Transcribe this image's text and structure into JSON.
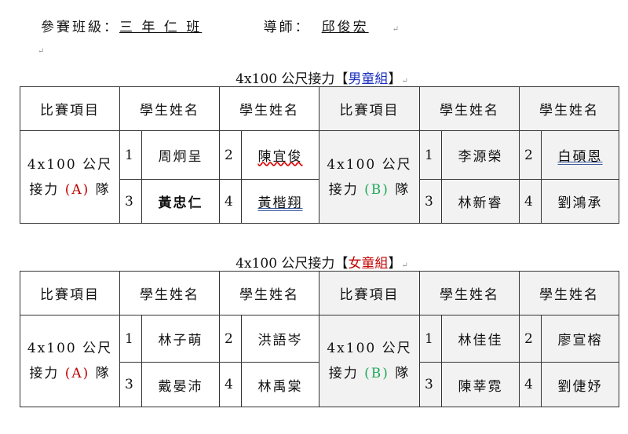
{
  "header": {
    "class_label": "參賽班級：",
    "class_value": "三 年 仁 班",
    "teacher_label": "導師：",
    "teacher_value": "邱俊宏"
  },
  "tables": [
    {
      "title_prefix": "4x100 公尺接力【",
      "group": "男童組",
      "title_suffix": "】",
      "group_color": "#1a2fbf",
      "headers": [
        "比賽項目",
        "學生姓名",
        "學生姓名",
        "比賽項目",
        "學生姓名",
        "學生姓名"
      ],
      "team_a": {
        "line1": "4x100 公尺",
        "line2_pre": "接力",
        "tag": "(A)",
        "line2_post": "隊",
        "students": [
          [
            "1",
            "周炯呈"
          ],
          [
            "2",
            "陳宜俊"
          ],
          [
            "3",
            "黃忠仁"
          ],
          [
            "4",
            "黃楷翔"
          ]
        ]
      },
      "team_b": {
        "line1": "4x100 公尺",
        "line2_pre": "接力",
        "tag": "(B)",
        "line2_post": "隊",
        "students": [
          [
            "1",
            "李源榮"
          ],
          [
            "2",
            "白碩恩"
          ],
          [
            "3",
            "林新睿"
          ],
          [
            "4",
            "劉鴻承"
          ]
        ]
      }
    },
    {
      "title_prefix": "4x100 公尺接力【",
      "group": "女童組",
      "title_suffix": "】",
      "group_color": "#c00000",
      "headers": [
        "比賽項目",
        "學生姓名",
        "學生姓名",
        "比賽項目",
        "學生姓名",
        "學生姓名"
      ],
      "team_a": {
        "line1": "4x100 公尺",
        "line2_pre": "接力",
        "tag": "(A)",
        "line2_post": "隊",
        "students": [
          [
            "1",
            "林子萌"
          ],
          [
            "2",
            "洪語岑"
          ],
          [
            "3",
            "戴晏沛"
          ],
          [
            "4",
            "林禹棠"
          ]
        ]
      },
      "team_b": {
        "line1": "4x100 公尺",
        "line2_pre": "接力",
        "tag": "(B)",
        "line2_post": "隊",
        "students": [
          [
            "1",
            "林佳佳"
          ],
          [
            "2",
            "廖宣榕"
          ],
          [
            "3",
            "陳莘霓"
          ],
          [
            "4",
            "劉倢妤"
          ]
        ]
      }
    }
  ]
}
